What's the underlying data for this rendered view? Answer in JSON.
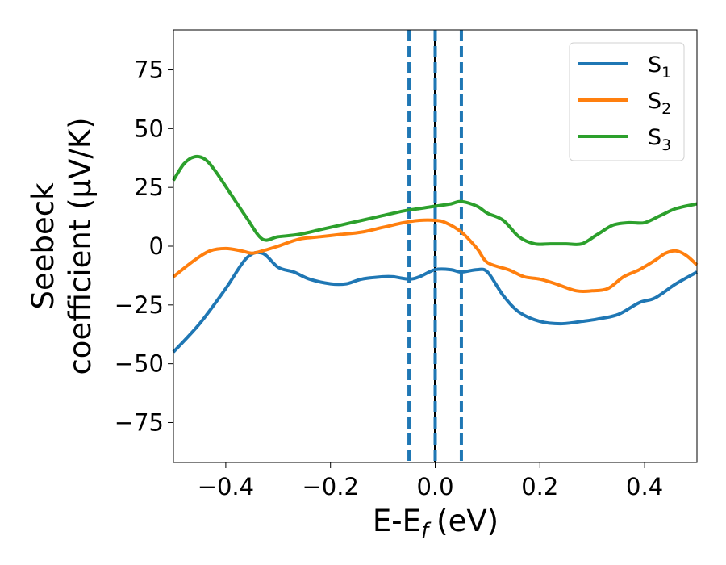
{
  "chart_data": {
    "type": "line",
    "xlabel": "E-E",
    "xlabel_sub": "f",
    "xlabel_unit": "(eV)",
    "ylabel_line1": "Seebeck",
    "ylabel_line2": "coefficient  (μV/K)",
    "xlim": [
      -0.5,
      0.5
    ],
    "ylim": [
      -92,
      92
    ],
    "x_ticks": [
      -0.4,
      -0.2,
      0.0,
      0.2,
      0.4
    ],
    "x_tick_labels": [
      "−0.4",
      "−0.2",
      "0.0",
      "0.2",
      "0.4"
    ],
    "y_ticks": [
      -75,
      -50,
      -25,
      0,
      25,
      50,
      75
    ],
    "y_tick_labels": [
      "−75",
      "−50",
      "−25",
      "0",
      "25",
      "50",
      "75"
    ],
    "grid": false,
    "legend_position": "top-right",
    "vertical_lines": [
      {
        "x": -0.05,
        "style": "dashed",
        "color": "#1f77b4"
      },
      {
        "x": 0.0,
        "style": "solid",
        "color": "#000000"
      },
      {
        "x": 0.0,
        "style": "dashed",
        "color": "#1f77b4"
      },
      {
        "x": 0.05,
        "style": "dashed",
        "color": "#1f77b4"
      }
    ],
    "series": [
      {
        "name": "S",
        "subscript": "1",
        "color": "#1f77b4",
        "x": [
          -0.5,
          -0.45,
          -0.4,
          -0.36,
          -0.33,
          -0.3,
          -0.27,
          -0.24,
          -0.2,
          -0.17,
          -0.14,
          -0.1,
          -0.08,
          -0.05,
          -0.03,
          0.0,
          0.03,
          0.05,
          0.08,
          0.1,
          0.13,
          0.16,
          0.2,
          0.24,
          0.28,
          0.31,
          0.35,
          0.39,
          0.42,
          0.46,
          0.5
        ],
        "values": [
          -45,
          -33,
          -18,
          -5,
          -3,
          -9,
          -11,
          -14,
          -16,
          -16,
          -14,
          -13,
          -13,
          -14,
          -13,
          -10,
          -10,
          -11,
          -10,
          -11,
          -21,
          -28,
          -32,
          -33,
          -32,
          -31,
          -29,
          -24,
          -22,
          -16,
          -11
        ]
      },
      {
        "name": "S",
        "subscript": "2",
        "color": "#ff7f0e",
        "x": [
          -0.5,
          -0.46,
          -0.43,
          -0.4,
          -0.37,
          -0.35,
          -0.33,
          -0.3,
          -0.26,
          -0.22,
          -0.18,
          -0.14,
          -0.1,
          -0.06,
          -0.03,
          0.0,
          0.02,
          0.05,
          0.08,
          0.1,
          0.14,
          0.17,
          0.2,
          0.23,
          0.27,
          0.3,
          0.33,
          0.36,
          0.39,
          0.42,
          0.44,
          0.46,
          0.48,
          0.5
        ],
        "values": [
          -13,
          -6,
          -2,
          -1,
          -2,
          -3,
          -2,
          0,
          3,
          4,
          5,
          6,
          8,
          10,
          11,
          11,
          10,
          6,
          -1,
          -7,
          -10,
          -13,
          -14,
          -16,
          -19,
          -19,
          -18,
          -13,
          -10,
          -6,
          -3,
          -2,
          -4,
          -8
        ]
      },
      {
        "name": "S",
        "subscript": "3",
        "color": "#2ca02c",
        "x": [
          -0.5,
          -0.48,
          -0.46,
          -0.44,
          -0.42,
          -0.39,
          -0.36,
          -0.33,
          -0.3,
          -0.26,
          -0.22,
          -0.18,
          -0.14,
          -0.1,
          -0.06,
          -0.03,
          0.0,
          0.03,
          0.05,
          0.08,
          0.1,
          0.13,
          0.16,
          0.19,
          0.22,
          0.25,
          0.28,
          0.31,
          0.34,
          0.37,
          0.4,
          0.43,
          0.46,
          0.5
        ],
        "values": [
          28,
          35,
          38,
          37,
          32,
          22,
          12,
          3,
          4,
          5,
          7,
          9,
          11,
          13,
          15,
          16,
          17,
          18,
          19,
          17,
          14,
          11,
          4,
          1,
          1,
          1,
          1,
          5,
          9,
          10,
          10,
          13,
          16,
          18
        ]
      }
    ]
  }
}
